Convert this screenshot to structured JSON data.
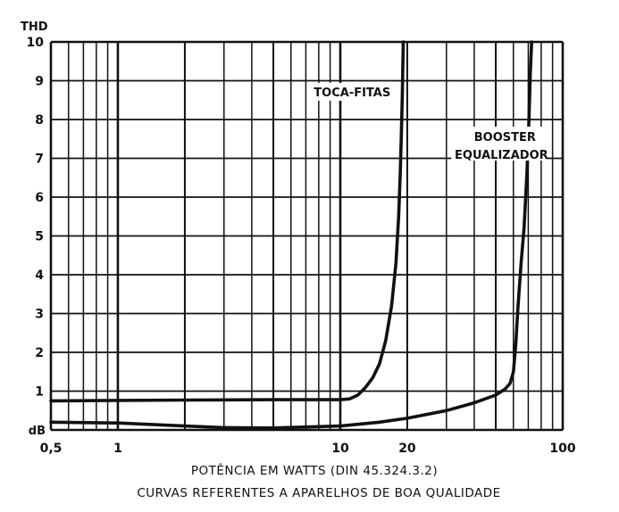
{
  "chart_data": {
    "type": "line",
    "y_unit_label": "THD",
    "y_base_label": "dB",
    "xlabel": "POTÊNCIA EM WATTS (DIN 45.324.3.2)",
    "caption": "CURVAS REFERENTES A APARELHOS DE BOA QUALIDADE",
    "x_scale": "log",
    "xlim": [
      0.5,
      100
    ],
    "ylim": [
      0,
      10
    ],
    "x_tick_labels": [
      "0,5",
      "1",
      "10",
      "20",
      "100"
    ],
    "x_tick_values": [
      0.5,
      1,
      10,
      20,
      100
    ],
    "y_tick_labels": [
      "1",
      "2",
      "3",
      "4",
      "5",
      "6",
      "7",
      "8",
      "9",
      "10"
    ],
    "grid": true,
    "series": [
      {
        "name": "TOCA-FITAS",
        "x": [
          0.5,
          1,
          2,
          5,
          10,
          11,
          12,
          13,
          14,
          15,
          16,
          17,
          17.8,
          18.3,
          18.6,
          18.8,
          19.0,
          19.1,
          19.2
        ],
        "y": [
          0.75,
          0.76,
          0.77,
          0.78,
          0.78,
          0.8,
          0.9,
          1.1,
          1.35,
          1.7,
          2.3,
          3.2,
          4.3,
          5.5,
          6.6,
          7.6,
          8.6,
          9.4,
          10
        ]
      },
      {
        "name": "BOOSTER EQUALIZADOR",
        "x": [
          0.5,
          1,
          2,
          3,
          5,
          10,
          15,
          20,
          30,
          40,
          50,
          55,
          58,
          60,
          61.5,
          63,
          65,
          67,
          69,
          70.5,
          71.5,
          72.5
        ],
        "y": [
          0.2,
          0.18,
          0.1,
          0.06,
          0.05,
          0.1,
          0.2,
          0.3,
          0.5,
          0.7,
          0.9,
          1.05,
          1.2,
          1.5,
          2.2,
          3.2,
          4.3,
          5.2,
          6.6,
          8.0,
          9.2,
          10
        ]
      }
    ]
  }
}
